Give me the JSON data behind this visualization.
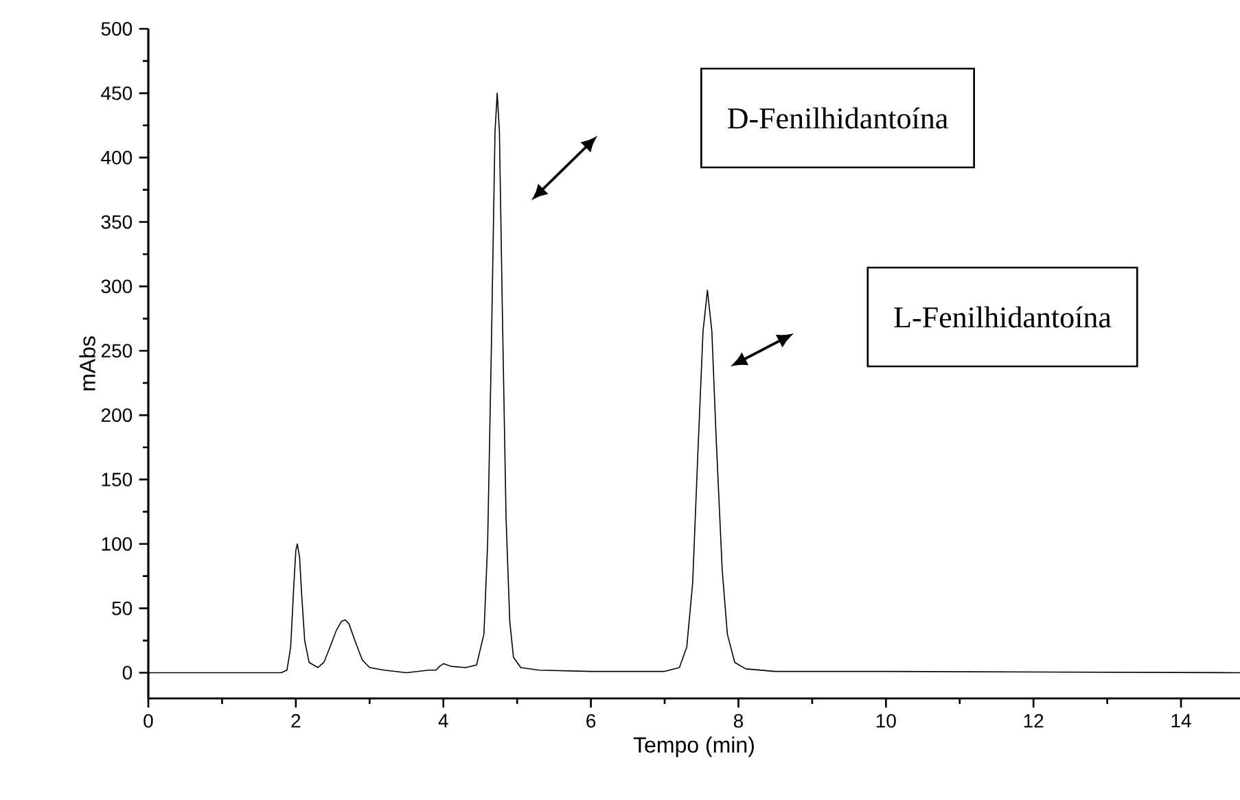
{
  "chart_data": {
    "type": "line",
    "xlabel": "Tempo (min)",
    "ylabel": "mAbs",
    "color": "#000000",
    "x": [
      0,
      1.8,
      1.88,
      1.93,
      1.97,
      2.0,
      2.02,
      2.05,
      2.08,
      2.12,
      2.18,
      2.3,
      2.38,
      2.45,
      2.55,
      2.62,
      2.67,
      2.72,
      2.8,
      2.9,
      3.0,
      3.2,
      3.5,
      3.8,
      3.9,
      3.95,
      4.0,
      4.1,
      4.3,
      4.45,
      4.55,
      4.6,
      4.65,
      4.7,
      4.73,
      4.76,
      4.8,
      4.85,
      4.9,
      4.95,
      5.05,
      5.3,
      6.0,
      7.0,
      7.2,
      7.3,
      7.38,
      7.45,
      7.52,
      7.58,
      7.64,
      7.7,
      7.78,
      7.85,
      7.95,
      8.1,
      8.5,
      10,
      14.8
    ],
    "values": [
      0,
      0,
      2,
      20,
      65,
      95,
      100,
      90,
      60,
      25,
      8,
      4,
      8,
      18,
      33,
      40,
      41,
      38,
      25,
      10,
      4,
      2,
      0,
      2,
      2,
      5,
      7,
      5,
      4,
      6,
      30,
      100,
      250,
      420,
      450,
      420,
      280,
      120,
      40,
      12,
      4,
      2,
      1,
      1,
      4,
      20,
      70,
      170,
      265,
      297,
      265,
      180,
      80,
      30,
      8,
      3,
      1,
      1,
      0
    ],
    "xlim": [
      0,
      14.8
    ],
    "ylim": [
      -20,
      500
    ],
    "xticks": [
      0,
      2,
      4,
      6,
      8,
      10,
      12,
      14
    ],
    "yticks": [
      0,
      50,
      100,
      150,
      200,
      250,
      300,
      350,
      400,
      450,
      500
    ],
    "annotations": [
      "D-Fenilhidantoína",
      "L-Fenilhidantoína"
    ]
  }
}
